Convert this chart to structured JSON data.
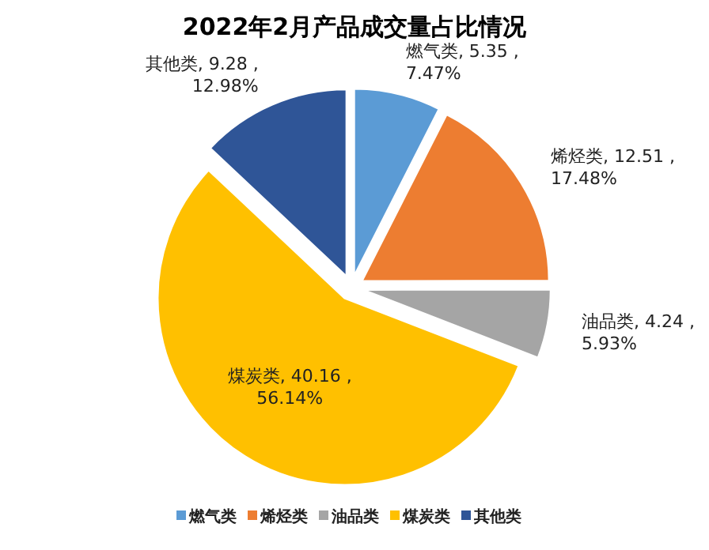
{
  "chart_data": {
    "type": "pie",
    "title": "2022年2月产品成交量占比情况",
    "categories": [
      "燃气类",
      "烯烃类",
      "油品类",
      "煤炭类",
      "其他类"
    ],
    "values": [
      5.35,
      12.51,
      4.24,
      40.16,
      9.28
    ],
    "value_labels": [
      "燃气类, 5.35 , 7.47%",
      "烯烃类, 12.51 , 17.48%",
      "油品类, 4.24 , 5.93%",
      "煤炭类, 40.16 , 56.14%",
      "其他类, 9.28 , 12.98%"
    ],
    "colors": [
      "#5b9bd5",
      "#ed7d31",
      "#a5a5a5",
      "#ffc000",
      "#2f5597"
    ],
    "legend": "bottom"
  }
}
